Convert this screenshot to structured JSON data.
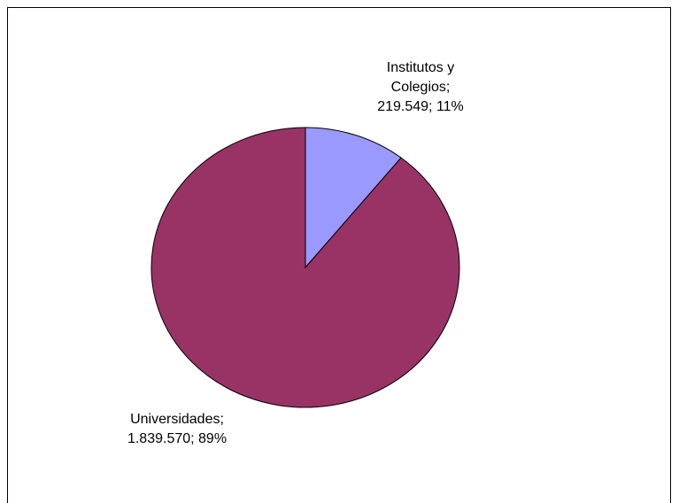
{
  "chart_data": {
    "type": "pie",
    "title": "",
    "categories": [
      "Institutos y Colegios",
      "Universidades"
    ],
    "values": [
      219549,
      1839570
    ],
    "percentages": [
      11,
      89
    ],
    "colors": [
      "#9999FF",
      "#993366"
    ],
    "labels": [
      {
        "lines": [
          "Institutos y",
          "Colegios;",
          "219.549; 11%"
        ]
      },
      {
        "lines": [
          "Universidades;",
          "1.839.570; 89%"
        ]
      }
    ]
  }
}
